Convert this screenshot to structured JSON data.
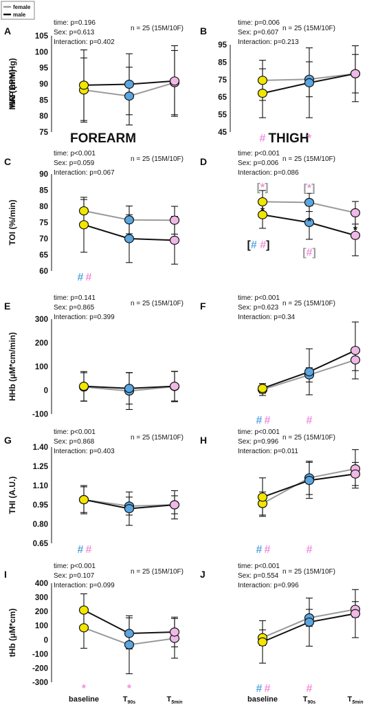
{
  "legend": {
    "female": "female",
    "male": "male"
  },
  "section_titles": {
    "forearm": "FOREARM",
    "thigh": "THIGH"
  },
  "colors": {
    "baseline": "#f2e600",
    "t90": "#5aa6e0",
    "t5": "#f0b8e6",
    "female_line": "#9a9a9a",
    "male_line": "#111111",
    "pink_mark": "#f28fdc",
    "blue_mark": "#5aa6e0"
  },
  "xticks": [
    "baseline",
    "T90s",
    "T5min"
  ],
  "xtick_display": {
    "t90_main": "T",
    "t90_sub": "90s",
    "t5_main": "T",
    "t5_sub": "5min"
  },
  "chart_data": [
    {
      "id": "A",
      "type": "line",
      "ylabel": "MAP (mmHg)",
      "yticks": [
        75,
        80,
        85,
        90,
        95,
        100,
        105
      ],
      "ylim": [
        75,
        105
      ],
      "stats": [
        "time: p=0.196",
        "Sex: p=0.613",
        "Interaction: p=0.402"
      ],
      "n": "n = 25 (15M/10F)",
      "series": [
        {
          "values": [
            88.1,
            86.2,
            90.4
          ],
          "err": [
            10,
            9,
            10
          ]
        },
        {
          "values": [
            89.6,
            89.9,
            90.9
          ],
          "err": [
            11,
            9.5,
            11
          ]
        }
      ],
      "marks": []
    },
    {
      "id": "B",
      "type": "line",
      "ylabel": "HR (BPM)",
      "yticks": [
        45,
        55,
        65,
        75,
        85,
        95
      ],
      "ylim": [
        45,
        95
      ],
      "stats": [
        "time: p=0.006",
        "Sex: p=0.607",
        "Interaction: p=0.213"
      ],
      "n": "n = 25 (15M/10F)",
      "series": [
        {
          "values": [
            74.6,
            75.2,
            78.4
          ],
          "err": [
            11.5,
            10,
            11
          ]
        },
        {
          "values": [
            67.2,
            73.2,
            78.4
          ],
          "err": [
            14,
            20,
            16
          ]
        }
      ],
      "marks": [
        {
          "t": "#",
          "c": "pink",
          "x": 0
        },
        {
          "t": "*",
          "c": "pink",
          "x": 1
        }
      ]
    },
    {
      "id": "C",
      "type": "line",
      "ylabel": "TOI (%/min)",
      "yticks": [
        60,
        65,
        70,
        75,
        80,
        85,
        90
      ],
      "ylim": [
        60,
        90
      ],
      "stats": [
        "time: p<0.001",
        "Sex: p=0.059",
        "Interaction: p=0.067"
      ],
      "n": "n = 25 (15M/10F)",
      "series": [
        {
          "values": [
            78.6,
            75.8,
            75.7
          ],
          "err": [
            3.5,
            4.3,
            4.3
          ]
        },
        {
          "values": [
            74.3,
            70.0,
            69.5
          ],
          "err": [
            8.5,
            7.4,
            7.4
          ]
        }
      ],
      "marks": [
        {
          "t": "#",
          "c": "blue",
          "x": 0,
          "dx": -5
        },
        {
          "t": "#",
          "c": "pink",
          "x": 0,
          "dx": 7
        }
      ]
    },
    {
      "id": "D",
      "type": "line",
      "ylabel": "",
      "yticks": [],
      "ylim": [
        60,
        90
      ],
      "stats": [
        "time: p<0.001",
        "Sex: p=0.006",
        "Interaction: p=0.086"
      ],
      "n": "n = 25 (15M/10F)",
      "series": [
        {
          "values": [
            81.4,
            81.2,
            78.0
          ],
          "err": [
            3.5,
            2.8,
            3.5
          ]
        },
        {
          "values": [
            77.4,
            75.0,
            71.0
          ],
          "err": [
            4.2,
            5.2,
            6.3
          ]
        }
      ],
      "marks": [
        {
          "t": "[*]",
          "c": "pinkbr",
          "x": 0,
          "above": true
        },
        {
          "t": "[*]",
          "c": "pinkbr",
          "x": 1,
          "above": true
        },
        {
          "t": "*",
          "c": "black",
          "x": 0,
          "mid": 79.4
        },
        {
          "t": "*",
          "c": "black",
          "x": 1,
          "mid": 76.2
        },
        {
          "t": "*",
          "c": "black",
          "x": 2,
          "mid": 73.5
        },
        {
          "t": "[##]",
          "c": "bluepink",
          "x": 0,
          "below": 69.6
        },
        {
          "t": "[#]",
          "c": "pinkbr",
          "x": 1,
          "below": 67.2
        }
      ]
    },
    {
      "id": "E",
      "type": "line",
      "ylabel": "HHb (μM*cm/min)",
      "yticks": [
        -100,
        0,
        100,
        200,
        300
      ],
      "ylim": [
        -100,
        300
      ],
      "stats": [
        "time: p=0.141",
        "Sex: p=0.865",
        "Interaction: p=0.399"
      ],
      "n": "n = 25 (15M/10F)",
      "series": [
        {
          "values": [
            14,
            -3,
            16
          ],
          "err": [
            60,
            78,
            64
          ]
        },
        {
          "values": [
            17,
            8,
            17
          ],
          "err": [
            62,
            66,
            62
          ]
        }
      ],
      "marks": []
    },
    {
      "id": "F",
      "type": "line",
      "ylabel": "",
      "yticks": [],
      "ylim": [
        -100,
        300
      ],
      "stats": [
        "time: p<0.001",
        "Sex: p=0.623",
        "Interaction: p=0.34"
      ],
      "n": "n = 25 (15M/10F)",
      "series": [
        {
          "values": [
            3,
            65,
            128
          ],
          "err": [
            25,
            30,
            45
          ]
        },
        {
          "values": [
            8,
            78,
            168
          ],
          "err": [
            20,
            97,
            120
          ]
        }
      ],
      "marks": [
        {
          "t": "#",
          "c": "blue",
          "x": 0,
          "dx": -5
        },
        {
          "t": "#",
          "c": "pink",
          "x": 0,
          "dx": 7
        },
        {
          "t": "#",
          "c": "pink",
          "x": 1
        }
      ]
    },
    {
      "id": "G",
      "type": "line",
      "ylabel": "THI (A.U.)",
      "yticks": [
        0.65,
        0.8,
        0.95,
        1.1,
        1.25,
        1.4
      ],
      "ytick_labels": [
        "0.65",
        "0.80",
        "0.95",
        "1.10",
        "1.25",
        "1.40"
      ],
      "ylim": [
        0.65,
        1.4
      ],
      "stats": [
        "time: p<0.001",
        "Sex: p=0.868",
        "Interaction: p=0.403"
      ],
      "n": "n = 25 (15M/10F)",
      "series": [
        {
          "values": [
            0.99,
            0.94,
            0.95
          ],
          "err": [
            0.1,
            0.07,
            0.07
          ]
        },
        {
          "values": [
            0.99,
            0.92,
            0.95
          ],
          "err": [
            0.11,
            0.13,
            0.11
          ]
        }
      ],
      "marks": [
        {
          "t": "#",
          "c": "blue",
          "x": 0,
          "dx": -5
        },
        {
          "t": "#",
          "c": "pink",
          "x": 0,
          "dx": 7
        }
      ]
    },
    {
      "id": "H",
      "type": "line",
      "ylabel": "",
      "yticks": [],
      "ylim": [
        0.65,
        1.4
      ],
      "stats": [
        "time: p<0.001",
        "Sex: p=0.996",
        "Interaction: p=0.011"
      ],
      "n": "n = 25 (15M/10F)",
      "series": [
        {
          "values": [
            0.96,
            1.16,
            1.23
          ],
          "err": [
            0.09,
            0.13,
            0.15
          ]
        },
        {
          "values": [
            1.01,
            1.14,
            1.19
          ],
          "err": [
            0.15,
            0.14,
            0.09
          ]
        }
      ],
      "marks": [
        {
          "t": "#",
          "c": "blue",
          "x": 0,
          "dx": -5
        },
        {
          "t": "#",
          "c": "pink",
          "x": 0,
          "dx": 7
        },
        {
          "t": "#",
          "c": "pink",
          "x": 1
        }
      ]
    },
    {
      "id": "I",
      "type": "line",
      "ylabel": "tHb (μM*cm)",
      "yticks": [
        -300,
        -200,
        -100,
        0,
        100,
        200,
        300,
        400
      ],
      "ylim": [
        -300,
        400
      ],
      "stats": [
        "time: p<0.001",
        "Sex: p=0.107",
        "Interaction: p=0.099"
      ],
      "n": "n = 25 (15M/10F)",
      "series": [
        {
          "values": [
            85,
            -35,
            10
          ],
          "err": [
            145,
            205,
            140
          ]
        },
        {
          "values": [
            210,
            45,
            55
          ],
          "err": [
            115,
            110,
            105
          ]
        }
      ],
      "marks": [
        {
          "t": "*",
          "c": "pink",
          "x": 0
        },
        {
          "t": "*",
          "c": "pink",
          "x": 1
        }
      ]
    },
    {
      "id": "J",
      "type": "line",
      "ylabel": "",
      "yticks": [],
      "ylim": [
        -300,
        400
      ],
      "stats": [
        "time: p<0.001",
        "Sex: p=0.554",
        "Interaction: p=0.996"
      ],
      "n": "n = 25 (15M/10F)",
      "series": [
        {
          "values": [
            15,
            155,
            215
          ],
          "err": [
            55,
            60,
            55
          ]
        },
        {
          "values": [
            -15,
            125,
            185
          ],
          "err": [
            150,
            170,
            170
          ]
        }
      ],
      "marks": [
        {
          "t": "#",
          "c": "blue",
          "x": 0,
          "dx": -5
        },
        {
          "t": "#",
          "c": "pink",
          "x": 0,
          "dx": 7
        },
        {
          "t": "#",
          "c": "pink",
          "x": 1
        }
      ]
    }
  ]
}
